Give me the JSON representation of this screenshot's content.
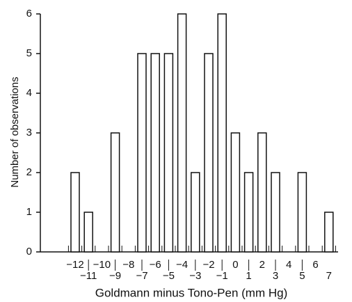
{
  "chart_data": {
    "type": "bar",
    "xlabel": "Goldmann minus Tono-Pen (mm Hg)",
    "ylabel": "Number of observations",
    "categories": [
      "−12",
      "−11",
      "−10",
      "−9",
      "−8",
      "−7",
      "−6",
      "−5",
      "−4",
      "−3",
      "−2",
      "−1",
      "0",
      "1",
      "2",
      "3",
      "4",
      "5",
      "6",
      "7"
    ],
    "values": [
      2,
      1,
      0,
      3,
      0,
      5,
      5,
      5,
      6,
      2,
      5,
      6,
      3,
      2,
      3,
      2,
      0,
      2,
      0,
      1
    ],
    "color": "#ffffff",
    "ylim": [
      0,
      6
    ],
    "yticks": [
      0,
      1,
      2,
      3,
      4,
      5,
      6
    ]
  }
}
